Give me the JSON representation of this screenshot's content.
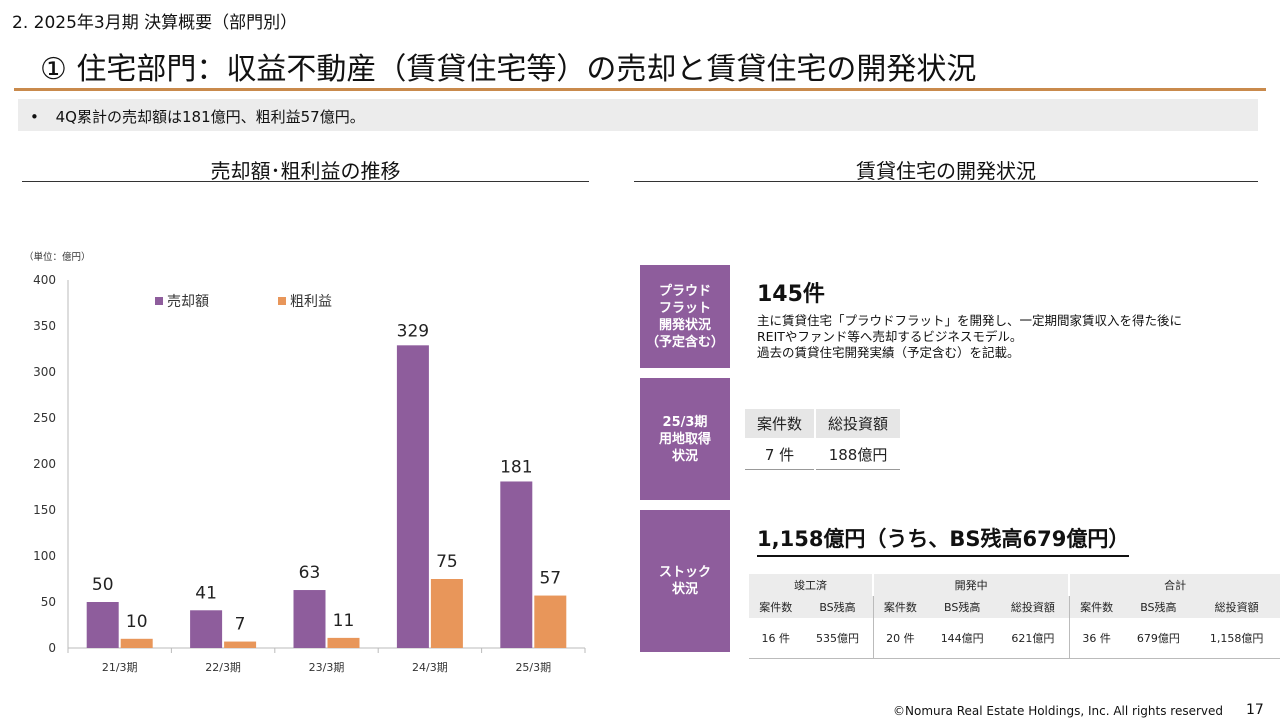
{
  "header": {
    "section_label": "2. 2025年3月期 決算概要（部門別）",
    "title": "① 住宅部門：収益不動産（賃貸住宅等）の売却と賃貸住宅の開発状況"
  },
  "summary": {
    "bullet": "•",
    "text": "4Q累計の売却額は181億円、粗利益57億円。"
  },
  "left_section": {
    "heading": "売却額･粗利益の推移"
  },
  "right_section": {
    "heading": "賃貸住宅の開発状況"
  },
  "chart_data": {
    "type": "bar",
    "unit_label": "（単位：億円）",
    "categories": [
      "21/3期",
      "22/3期",
      "23/3期",
      "24/3期",
      "25/3期"
    ],
    "series": [
      {
        "name": "売却額",
        "values": [
          50,
          41,
          63,
          329,
          181
        ],
        "color": "#8e5d9c"
      },
      {
        "name": "粗利益",
        "values": [
          10,
          7,
          11,
          75,
          57
        ],
        "color": "#e8965a"
      }
    ],
    "ylim": [
      0,
      400
    ],
    "yticks": [
      0,
      50,
      100,
      150,
      200,
      250,
      300,
      350,
      400
    ],
    "legend_position": "top"
  },
  "proud_flat": {
    "badge": [
      "プラウド",
      "フラット",
      "開発状況",
      "（予定含む）"
    ],
    "count": "145件",
    "description": [
      "主に賃貸住宅「プラウドフラット」を開発し、一定期間家賃収入を得た後に",
      "REITやファンド等へ売却するビジネスモデル。",
      "過去の賃貸住宅開発実績（予定含む）を記載。"
    ]
  },
  "land_acquisition": {
    "badge": [
      "25/3期",
      "用地取得",
      "状況"
    ],
    "headers": [
      "案件数",
      "総投資額"
    ],
    "values": [
      "7 件",
      "188億円"
    ]
  },
  "stock": {
    "badge": [
      "ストック",
      "状況"
    ],
    "headline": "1,158億円（うち、BS残高679億円）",
    "groups": [
      "竣工済",
      "開発中",
      "合計"
    ],
    "subheaders": [
      "案件数",
      "BS残高",
      "案件数",
      "BS残高",
      "総投資額",
      "案件数",
      "BS残高",
      "総投資額"
    ],
    "values": [
      "16 件",
      "535億円",
      "20 件",
      "144億円",
      "621億円",
      "36 件",
      "679億円",
      "1,158億円"
    ]
  },
  "footer": {
    "copyright": "©Nomura Real Estate Holdings, Inc. All rights reserved",
    "page": "17"
  },
  "colors": {
    "accent_purple": "#8e5d9c",
    "accent_orange": "#e8965a",
    "title_rule": "#c98a4c"
  }
}
